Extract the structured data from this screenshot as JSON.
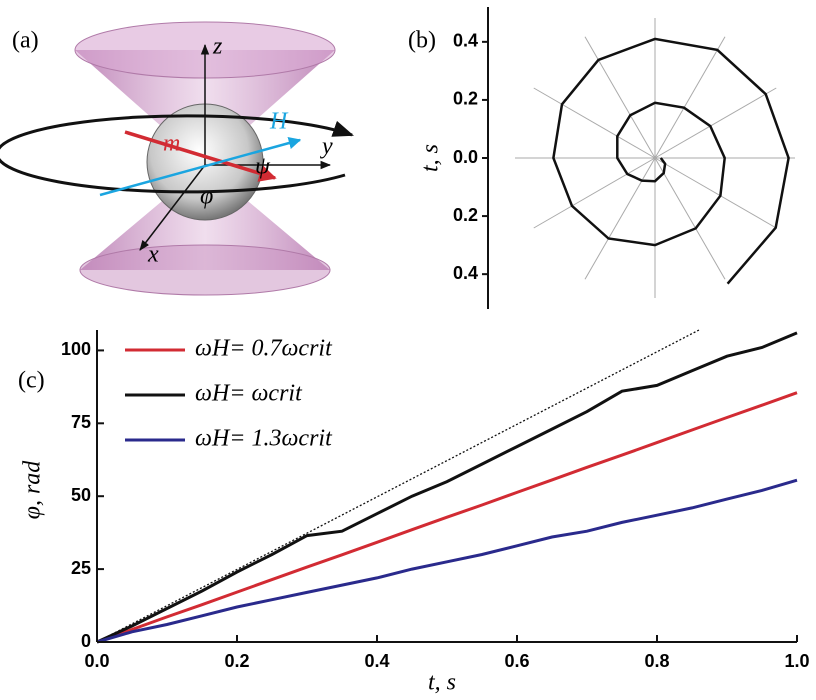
{
  "diagram": {
    "panel_label": "(a)",
    "z_label": "z",
    "y_label": "y",
    "x_label": "x",
    "m_label": "m",
    "h_label": "H",
    "psi_label": "ψ",
    "phi_label": "φ"
  },
  "chart_data": [
    {
      "type": "polar",
      "panel_label": "(b)",
      "ylabel": "t, s",
      "ylim": [
        -0.52,
        0.52
      ],
      "yticks": [
        {
          "value": -0.4,
          "label": "0.4"
        },
        {
          "value": -0.2,
          "label": "0.2"
        },
        {
          "value": 0,
          "label": "0.0"
        },
        {
          "value": 0.2,
          "label": "0.2"
        },
        {
          "value": 0.4,
          "label": "0.4"
        }
      ],
      "grid": true,
      "color": "#111111",
      "theta": [
        0,
        -30,
        -60,
        -90,
        -120,
        -150,
        -180,
        -210,
        -240,
        -270,
        -300,
        -330,
        -360,
        -390,
        -420,
        -450,
        -480,
        -510,
        -540,
        -570,
        -600,
        -630,
        -660,
        -690,
        -720,
        -750,
        -780
      ],
      "r": [
        0.02,
        0.04,
        0.06,
        0.08,
        0.09,
        0.11,
        0.13,
        0.15,
        0.17,
        0.19,
        0.2,
        0.22,
        0.24,
        0.26,
        0.28,
        0.3,
        0.32,
        0.33,
        0.35,
        0.37,
        0.39,
        0.41,
        0.43,
        0.44,
        0.46,
        0.48,
        0.5
      ]
    },
    {
      "type": "line",
      "panel_label": "(c)",
      "xlabel": "t, s",
      "ylabel": "φ, rad",
      "xlim": [
        0,
        1
      ],
      "ylim": [
        0,
        107
      ],
      "xticks": [
        {
          "value": 0,
          "label": "0.0"
        },
        {
          "value": 0.2,
          "label": "0.2"
        },
        {
          "value": 0.4,
          "label": "0.4"
        },
        {
          "value": 0.6,
          "label": "0.6"
        },
        {
          "value": 0.8,
          "label": "0.8"
        },
        {
          "value": 1,
          "label": "1.0"
        }
      ],
      "yticks": [
        0,
        25,
        50,
        75,
        100
      ],
      "x": [
        0,
        0.05,
        0.1,
        0.15,
        0.2,
        0.25,
        0.3,
        0.35,
        0.4,
        0.45,
        0.5,
        0.55,
        0.6,
        0.65,
        0.7,
        0.75,
        0.8,
        0.85,
        0.9,
        0.95,
        1
      ],
      "series": [
        {
          "name": "ωH= 0.7ωcrit",
          "color": "#d22b33",
          "values": [
            0,
            4.3,
            8.6,
            12.8,
            17.1,
            21.4,
            25.7,
            29.9,
            34.2,
            38.5,
            42.8,
            47,
            51.3,
            55.6,
            59.9,
            64.1,
            68.4,
            72.7,
            77,
            81.2,
            85.5
          ]
        },
        {
          "name": "ωH= ωcrit",
          "color": "#111111",
          "values": [
            0,
            5.5,
            11.5,
            17.5,
            24,
            30,
            36.5,
            38,
            44,
            50,
            55,
            61,
            67,
            73,
            79,
            86,
            88,
            93,
            98,
            101,
            106
          ]
        },
        {
          "name": "ωH= 1.3ωcrit",
          "color": "#2a2a8c",
          "values": [
            0,
            3.5,
            6,
            9,
            12,
            14.5,
            17,
            19.5,
            22,
            25,
            27.5,
            30,
            33,
            36,
            38,
            41,
            43.5,
            46,
            49,
            52,
            55.5
          ]
        }
      ],
      "reference_line": {
        "x": [
          0,
          0.86
        ],
        "values": [
          0,
          107
        ]
      }
    }
  ]
}
